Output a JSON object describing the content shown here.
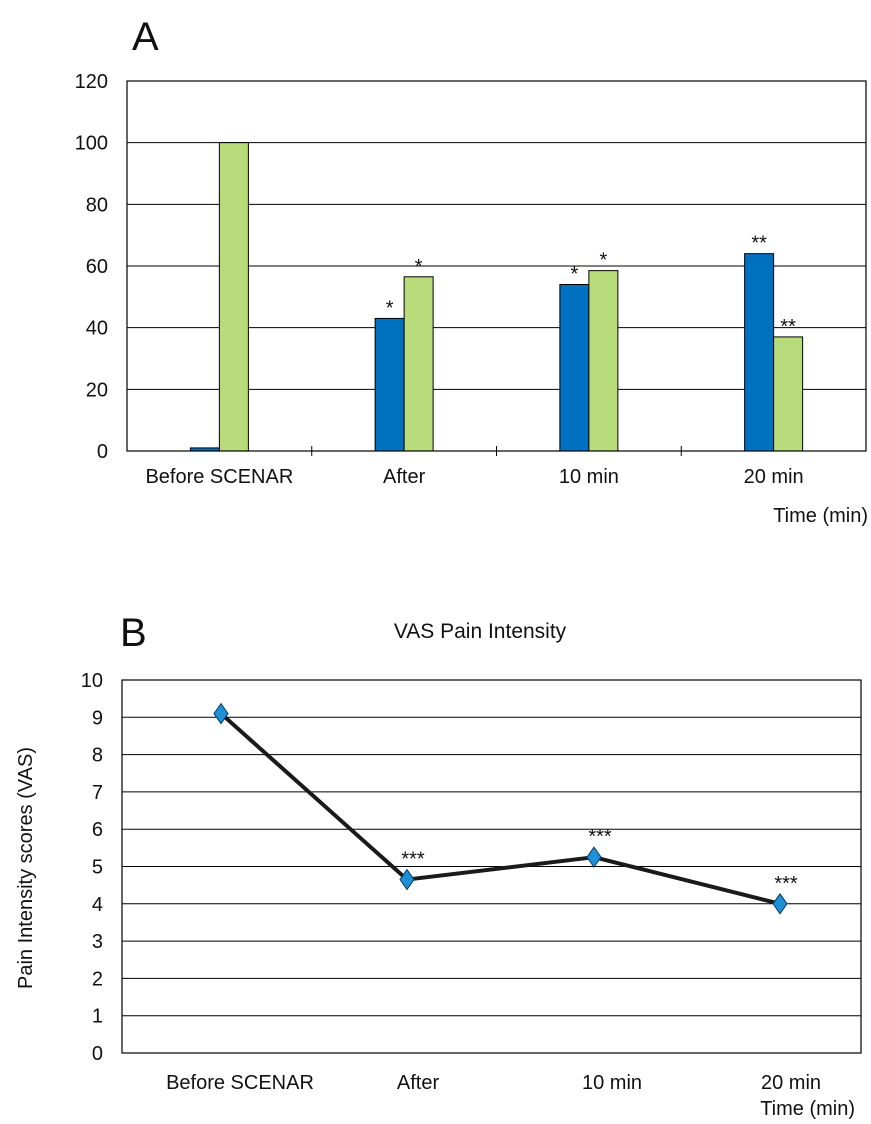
{
  "chart_data": [
    {
      "type": "bar",
      "panel_label": "A",
      "categories": [
        "Before SCENAR",
        "After",
        "10 min",
        "20 min"
      ],
      "xlabel": "Time (min)",
      "ylim": [
        0,
        120
      ],
      "yticks": [
        0,
        20,
        40,
        60,
        80,
        100,
        120
      ],
      "grid": true,
      "series": [
        {
          "values": [
            1,
            43,
            54,
            64
          ],
          "color": "#0070C0",
          "annotations": [
            "",
            "*",
            "*",
            "**"
          ]
        },
        {
          "values": [
            100,
            56.5,
            58.5,
            37
          ],
          "color": "#B8DC7C",
          "annotations": [
            "",
            "*",
            "*",
            "**"
          ]
        }
      ]
    },
    {
      "type": "line",
      "panel_label": "B",
      "title": "VAS Pain Intensity",
      "categories": [
        "Before SCENAR",
        "After",
        "10 min",
        "20 min"
      ],
      "xlabel": "Time (min)",
      "ylabel": "Pain Intensity scores (VAS)",
      "ylim": [
        0,
        10
      ],
      "yticks": [
        0,
        1,
        2,
        3,
        4,
        5,
        6,
        7,
        8,
        9,
        10
      ],
      "grid": true,
      "series": [
        {
          "values": [
            9.1,
            4.65,
            5.25,
            4.0
          ],
          "line_color": "#1a1a1a",
          "marker_color": "#1E90D6",
          "marker": "diamond",
          "annotations": [
            "",
            "***",
            "***",
            "***"
          ]
        }
      ]
    }
  ]
}
